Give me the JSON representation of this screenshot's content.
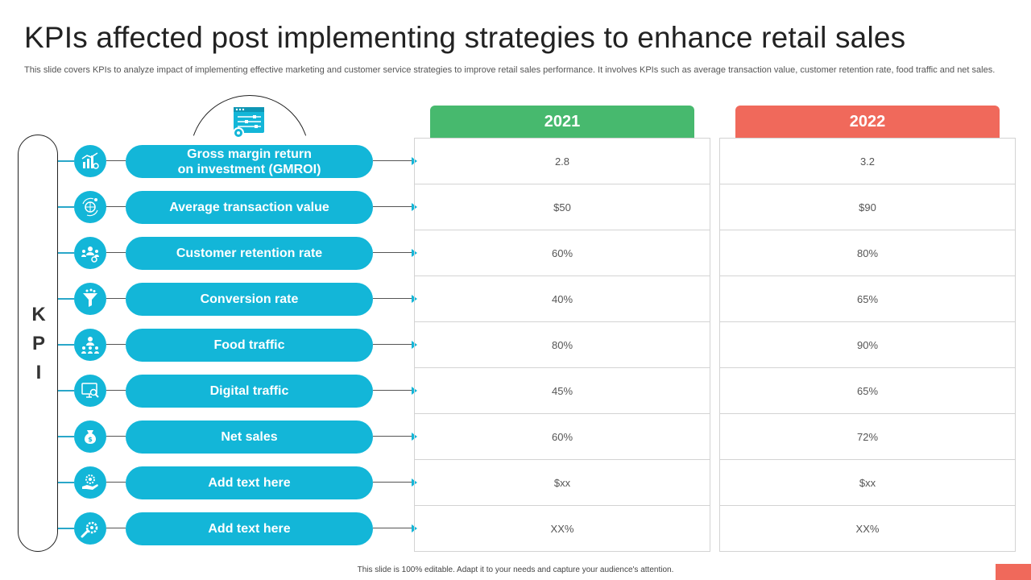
{
  "title": "KPIs affected post implementing strategies to enhance retail sales",
  "subtitle": "This slide covers KPIs to analyze impact of implementing effective marketing and customer service strategies to improve retail sales performance. It involves KPIs such as average transaction value, customer retention rate, food traffic and net sales.",
  "kpi_label": [
    "K",
    "P",
    "I"
  ],
  "top_icon": "dashboard-settings-icon",
  "years": [
    "2021",
    "2022"
  ],
  "colors": {
    "accent": "#13b6d8",
    "year_2021": "#47b96e",
    "year_2022": "#f0695b"
  },
  "rows": [
    {
      "label": "Gross margin return\non investment (GMROI)",
      "icon": "chart-icon",
      "v2021": "2.8",
      "v2022": "3.2"
    },
    {
      "label": "Average transaction value",
      "icon": "globe-dollar-icon",
      "v2021": "$50",
      "v2022": "$90"
    },
    {
      "label": "Customer retention rate",
      "icon": "customers-icon",
      "v2021": "60%",
      "v2022": "80%"
    },
    {
      "label": "Conversion rate",
      "icon": "funnel-icon",
      "v2021": "40%",
      "v2022": "65%"
    },
    {
      "label": "Food traffic",
      "icon": "people-group-icon",
      "v2021": "80%",
      "v2022": "90%"
    },
    {
      "label": "Digital traffic",
      "icon": "monitor-search-icon",
      "v2021": "45%",
      "v2022": "65%"
    },
    {
      "label": "Net sales",
      "icon": "money-bag-icon",
      "v2021": "60%",
      "v2022": "72%"
    },
    {
      "label": "Add text here",
      "icon": "hand-gear-icon",
      "v2021": "$xx",
      "v2022": "$xx"
    },
    {
      "label": "Add text here",
      "icon": "wrench-gear-icon",
      "v2021": "XX%",
      "v2022": "XX%"
    }
  ],
  "footer": "This slide is 100% editable. Adapt it to your needs and capture your audience's attention."
}
